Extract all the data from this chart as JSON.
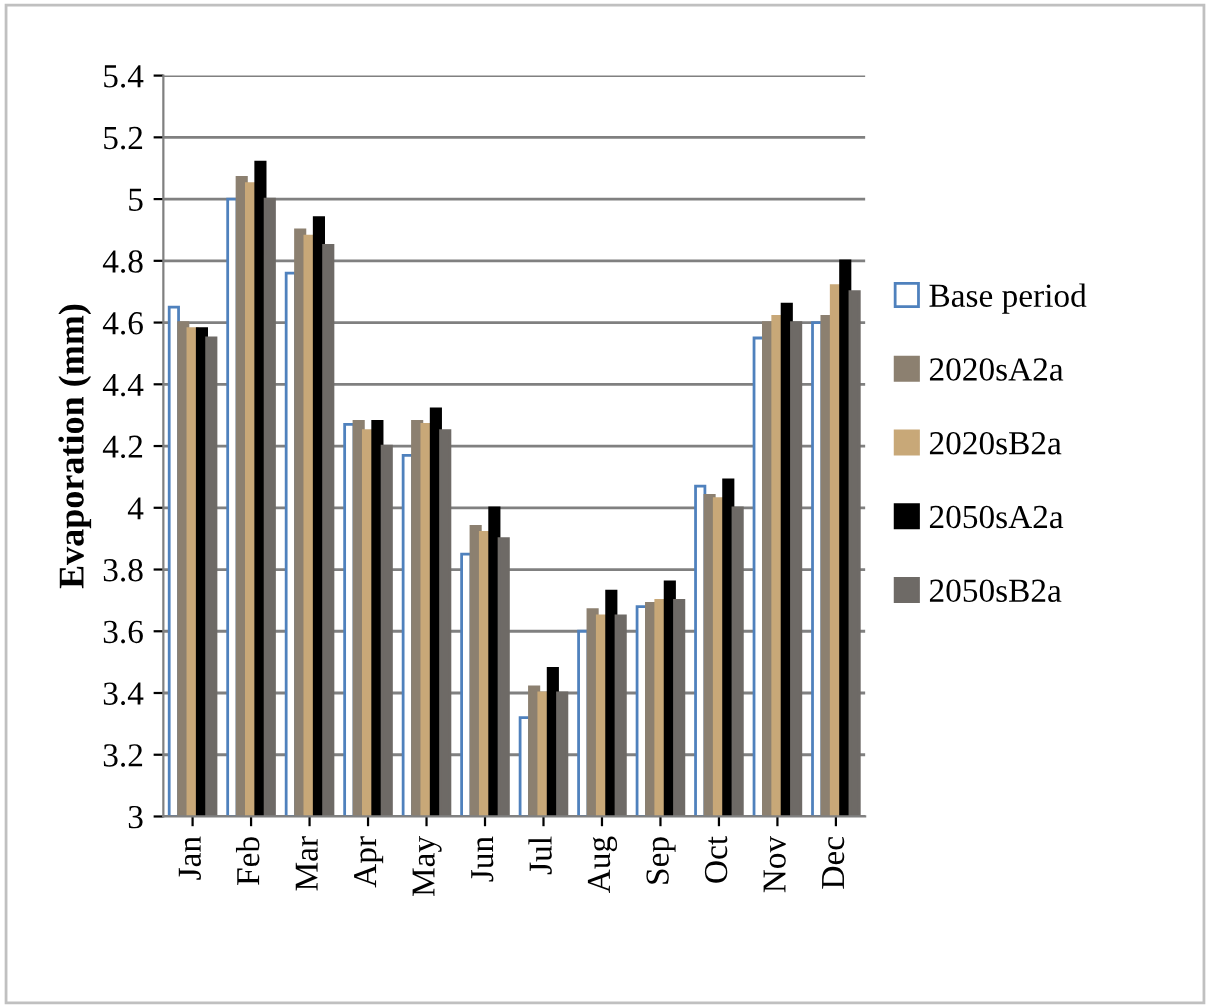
{
  "chart_data": {
    "type": "bar",
    "ylabel": "Evaporation (mm)",
    "categories": [
      "Jan",
      "Feb",
      "Mar",
      "Apr",
      "May",
      "Jun",
      "Jul",
      "Aug",
      "Sep",
      "Oct",
      "Nov",
      "Dec"
    ],
    "series": [
      {
        "name": "Base period",
        "color": "#ffffff",
        "values": [
          4.65,
          5.0,
          4.76,
          4.27,
          4.17,
          3.85,
          3.32,
          3.6,
          3.68,
          4.07,
          4.55,
          4.6
        ]
      },
      {
        "name": "2020sA2a",
        "color": "#8c8070",
        "values": [
          4.6,
          5.07,
          4.9,
          4.28,
          4.28,
          3.94,
          3.42,
          3.67,
          3.69,
          4.04,
          4.6,
          4.62
        ]
      },
      {
        "name": "2020sB2a",
        "color": "#c8a878",
        "values": [
          4.58,
          5.05,
          4.88,
          4.25,
          4.27,
          3.92,
          3.4,
          3.65,
          3.7,
          4.03,
          4.62,
          4.72
        ]
      },
      {
        "name": "2050sA2a",
        "color": "#000000",
        "values": [
          4.58,
          5.12,
          4.94,
          4.28,
          4.32,
          4.0,
          3.48,
          3.73,
          3.76,
          4.09,
          4.66,
          4.8
        ]
      },
      {
        "name": "2050sB2a",
        "color": "#6e6a66",
        "values": [
          4.55,
          5.0,
          4.85,
          4.2,
          4.25,
          3.9,
          3.4,
          3.65,
          3.7,
          4.0,
          4.6,
          4.7
        ]
      }
    ],
    "ylim": [
      3,
      5.4
    ],
    "yticks": [
      3,
      3.2,
      3.4,
      3.6,
      3.8,
      4,
      4.2,
      4.4,
      4.6,
      4.8,
      5,
      5.2,
      5.4
    ],
    "grid": "y",
    "legend": "right"
  }
}
